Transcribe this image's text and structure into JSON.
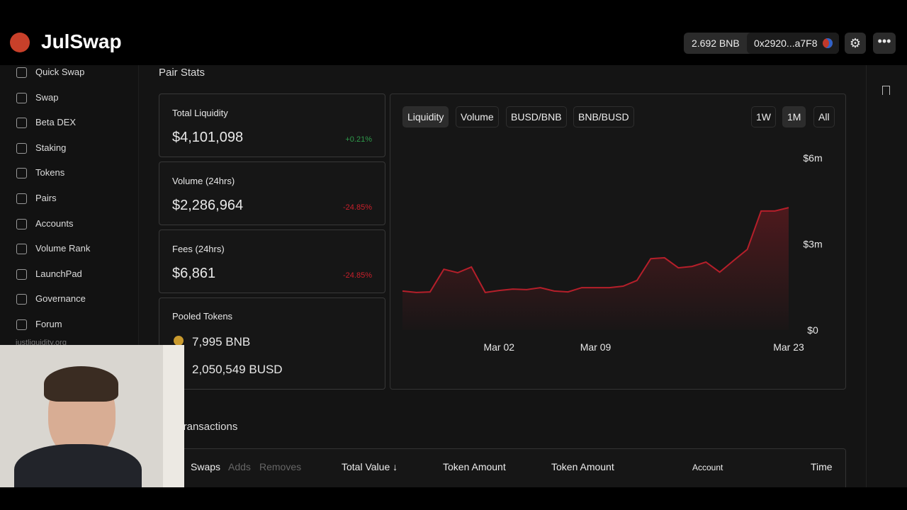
{
  "header": {
    "brand": "JulSwap",
    "balance": "2.692 BNB",
    "address": "0x2920...a7F8"
  },
  "sidebar": {
    "items": [
      "Quick Swap",
      "Swap",
      "Beta DEX",
      "Staking",
      "Tokens",
      "Pairs",
      "Accounts",
      "Volume Rank",
      "LaunchPad",
      "Governance",
      "Forum"
    ],
    "footer": "justliquidity.org"
  },
  "section_title": "Pair Stats",
  "stats": [
    {
      "label": "Total Liquidity",
      "value": "$4,101,098",
      "change": "+0.21%",
      "color": "#2f9b4b"
    },
    {
      "label": "Volume (24hrs)",
      "value": "$2,286,964",
      "change": "-24.85%",
      "color": "#c8202b"
    },
    {
      "label": "Fees (24hrs)",
      "value": "$6,861",
      "change": "-24.85%",
      "color": "#c8202b"
    }
  ],
  "pooled": {
    "label": "Pooled Tokens",
    "tokens": [
      "7,995 BNB",
      "2,050,549 BUSD"
    ]
  },
  "chart_data": {
    "type": "area",
    "tabs": [
      "Liquidity",
      "Volume",
      "BUSD/BNB",
      "BNB/BUSD"
    ],
    "ranges": [
      "1W",
      "1M",
      "All"
    ],
    "categories": [
      null,
      null,
      null,
      null,
      null,
      null,
      null,
      "Mar 02",
      null,
      null,
      null,
      null,
      null,
      null,
      "Mar 09",
      null,
      null,
      null,
      null,
      null,
      null,
      null,
      null,
      null,
      null,
      null,
      null,
      null,
      "Mar 23"
    ],
    "values": [
      1360000,
      1310000,
      1330000,
      2120000,
      2000000,
      2200000,
      1310000,
      1380000,
      1430000,
      1410000,
      1480000,
      1360000,
      1330000,
      1480000,
      1480000,
      1480000,
      1530000,
      1730000,
      2490000,
      2520000,
      2170000,
      2220000,
      2370000,
      2020000,
      2420000,
      2810000,
      4150000,
      4150000,
      4270000
    ],
    "color": "#b51f2a",
    "ylim": [
      0,
      6000000
    ],
    "yticks": [
      {
        "value": 0,
        "label": "$0"
      },
      {
        "value": 3000000,
        "label": "$3m"
      },
      {
        "value": 6000000,
        "label": "$6m"
      }
    ]
  },
  "transactions": {
    "title": "Transactions",
    "filters": [
      "Swaps",
      "Adds",
      "Removes"
    ],
    "columns": [
      "Total Value ↓",
      "Token Amount",
      "Token Amount",
      "Account",
      "Time"
    ]
  }
}
